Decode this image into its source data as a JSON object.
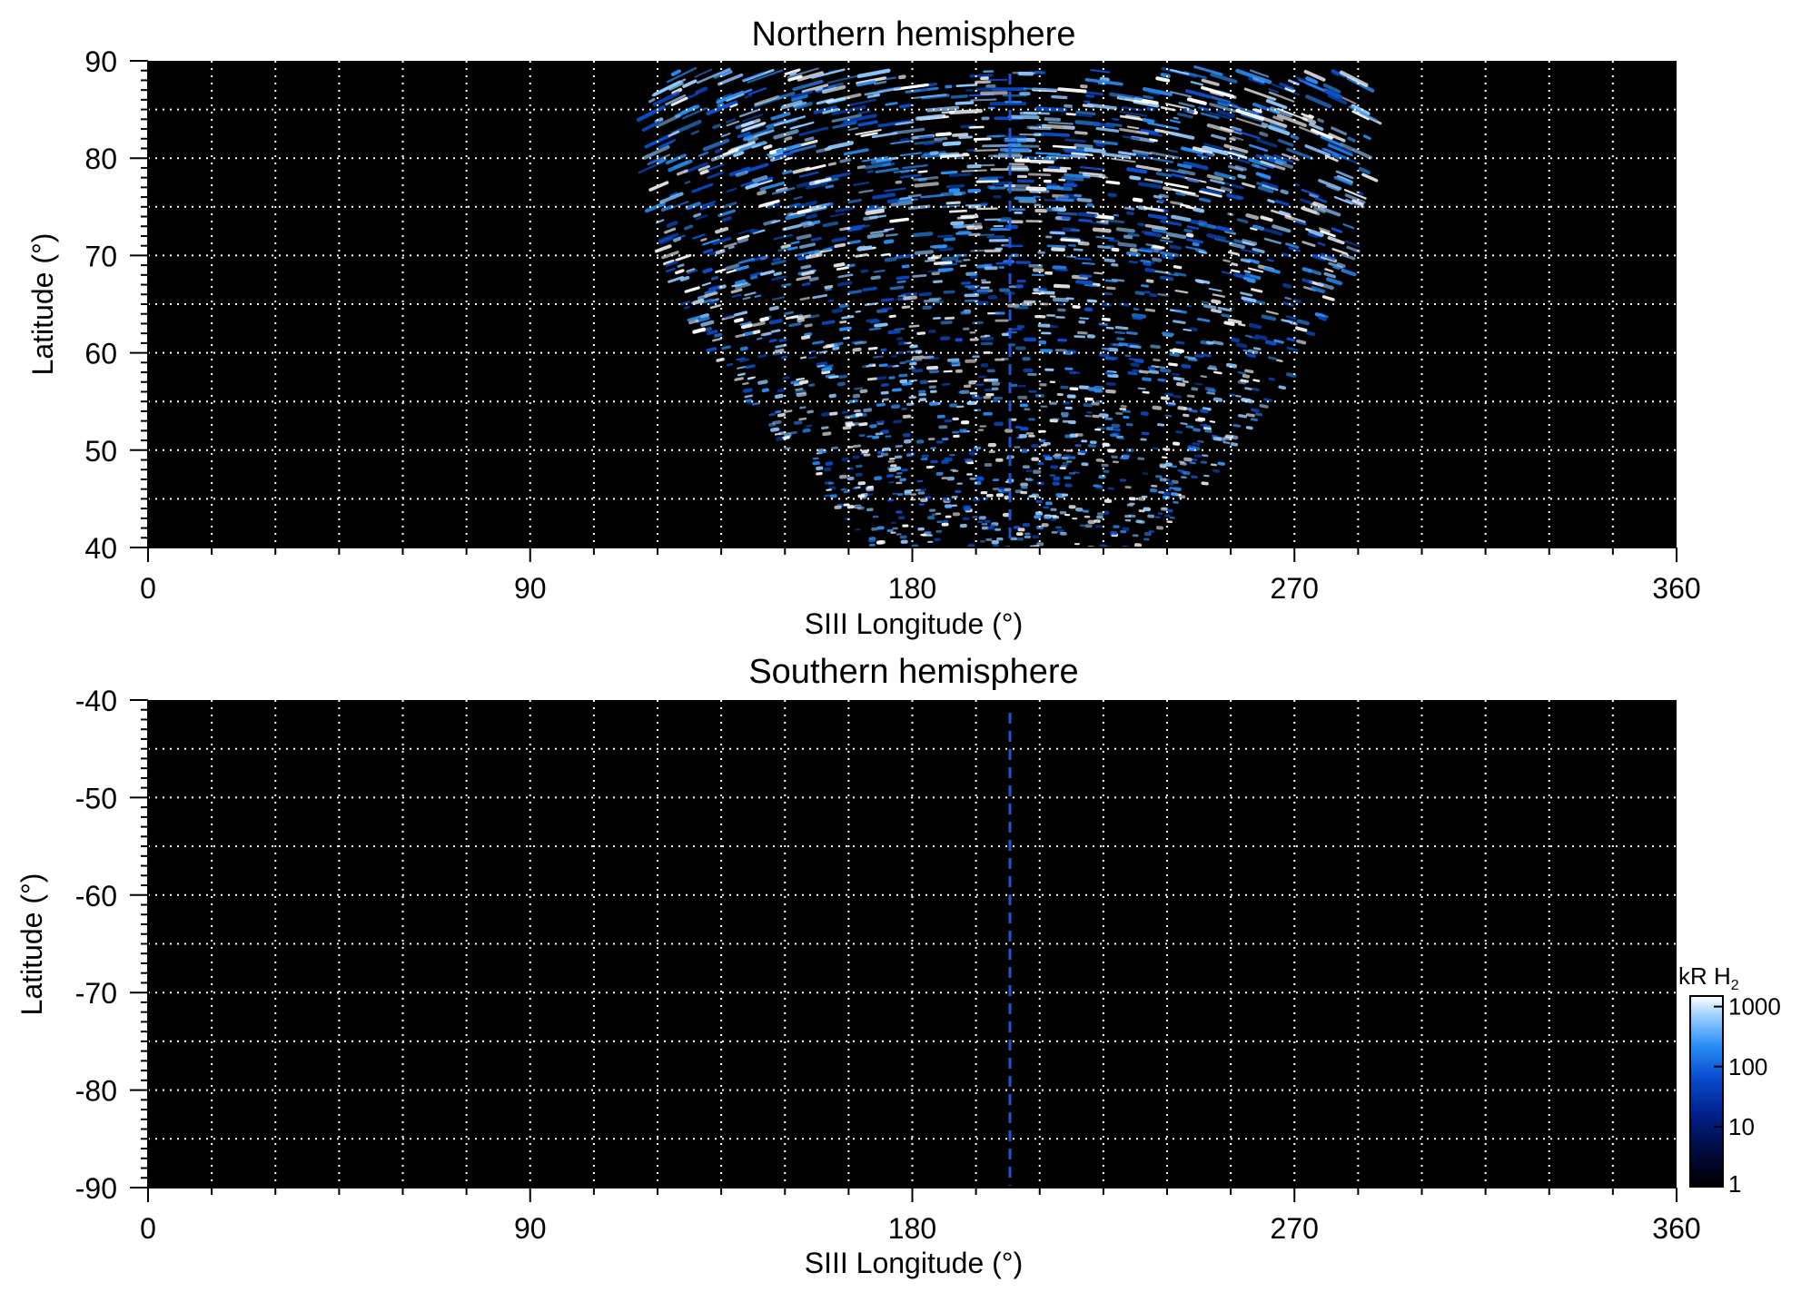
{
  "chart_data": [
    {
      "type": "heatmap",
      "title": "Northern hemisphere",
      "xlabel": "SIII Longitude (°)",
      "ylabel": "Latitude (°)",
      "xlim": [
        0,
        360
      ],
      "ylim": [
        40,
        90
      ],
      "xticks": [
        0,
        90,
        180,
        270,
        360
      ],
      "yticks": [
        40,
        50,
        60,
        70,
        80,
        90
      ],
      "grid": true,
      "background": "#000000",
      "reference_line": {
        "longitude": 203,
        "style": "dashed",
        "color": "#1a56d6"
      },
      "emission_region": {
        "lon_range": [
          118,
          288
        ],
        "lat_range": [
          40,
          89
        ],
        "intensity_range_kR": [
          1,
          1500
        ]
      }
    },
    {
      "type": "heatmap",
      "title": "Southern hemisphere",
      "xlabel": "SIII Longitude (°)",
      "ylabel": "Latitude (°)",
      "xlim": [
        0,
        360
      ],
      "ylim": [
        -90,
        -40
      ],
      "xticks": [
        0,
        90,
        180,
        270,
        360
      ],
      "yticks": [
        -40,
        -50,
        -60,
        -70,
        -80,
        -90
      ],
      "grid": true,
      "background": "#000000",
      "reference_line": {
        "longitude": 203,
        "style": "dashed",
        "color": "#1a56d6"
      },
      "emission_region": null
    }
  ],
  "colorbar": {
    "label": "kR H",
    "label_subscript": "2",
    "scale": "log",
    "range": [
      1,
      1500
    ],
    "ticks": [
      "1000",
      "100",
      "10",
      "1"
    ],
    "tick_values": [
      1000,
      100,
      10,
      1
    ],
    "colors": [
      "#000000",
      "#000a3c",
      "#00208a",
      "#0a4fd0",
      "#2a8ef5",
      "#8ec8ff",
      "#ffffff"
    ]
  }
}
